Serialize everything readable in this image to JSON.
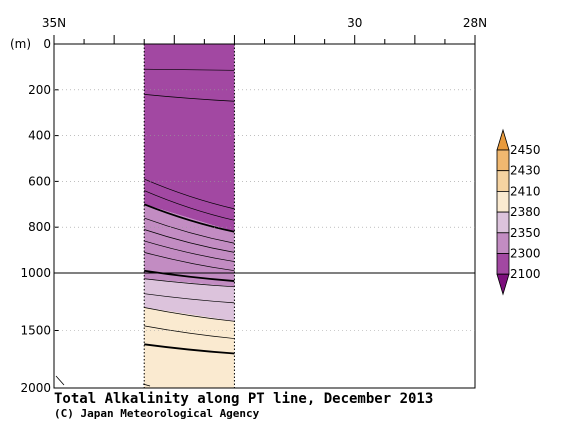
{
  "chart_data": {
    "type": "heatmap",
    "title": "Total Alkalinity along PT line, December 2013",
    "credit": "(C) Japan Meteorological Agency",
    "ylabel": "(m)",
    "x_range": [
      35,
      28
    ],
    "x_ticks": [
      {
        "value": 35,
        "label": "35N"
      },
      {
        "value": 30,
        "label": "30"
      },
      {
        "value": 28,
        "label": "28N"
      }
    ],
    "y_ticks": [
      {
        "value": 0,
        "label": "0"
      },
      {
        "value": 200,
        "label": "200"
      },
      {
        "value": 400,
        "label": "400"
      },
      {
        "value": 600,
        "label": "600"
      },
      {
        "value": 800,
        "label": "800"
      },
      {
        "value": 1000,
        "label": "1000"
      },
      {
        "value": 1500,
        "label": "1500"
      },
      {
        "value": 2000,
        "label": "2000"
      }
    ],
    "y_axis": "two-segment: 0-1000 m and 1000-2000 m, upper segment stretched",
    "data_column_lat": [
      33.5,
      32.0
    ],
    "color_levels": [
      2100,
      2300,
      2350,
      2380,
      2410,
      2430,
      2450
    ],
    "colorbar_labels": [
      "2450",
      "2430",
      "2410",
      "2380",
      "2350",
      "2300",
      "2100"
    ],
    "colors": {
      "below_2100": "#7c0f7c",
      "2100_2300": "#a248a2",
      "2300_2350": "#c28cc2",
      "2350_2380": "#dcc3dc",
      "2380_2410": "#faead0",
      "2410_2430": "#f5d3a1",
      "2430_2450": "#f0b870",
      "above_2450": "#e89a3c"
    },
    "bands": [
      {
        "range": "2100-2300",
        "color_key": "2100_2300",
        "top_depth": [
          0,
          0
        ],
        "bottom_depth": [
          700,
          820
        ]
      },
      {
        "range": "2300-2350",
        "color_key": "2300_2350",
        "top_depth": [
          700,
          820
        ],
        "bottom_depth": [
          1050,
          1120
        ]
      },
      {
        "range": "2350-2380",
        "color_key": "2350_2380",
        "top_depth": [
          1050,
          1120
        ],
        "bottom_depth": [
          1300,
          1420
        ]
      },
      {
        "range": "2380-2410",
        "color_key": "2380_2410",
        "top_depth": [
          1300,
          1420
        ],
        "bottom_depth": [
          2000,
          2000
        ]
      }
    ],
    "contours": [
      {
        "depth": [
          110,
          115
        ],
        "bold": false
      },
      {
        "depth": [
          220,
          250
        ],
        "bold": false
      },
      {
        "depth": [
          590,
          720
        ],
        "bold": false
      },
      {
        "depth": [
          640,
          770
        ],
        "bold": false
      },
      {
        "depth": [
          700,
          820
        ],
        "bold": true
      },
      {
        "depth": [
          760,
          870
        ],
        "bold": false
      },
      {
        "depth": [
          810,
          910
        ],
        "bold": false
      },
      {
        "depth": [
          860,
          950
        ],
        "bold": false
      },
      {
        "depth": [
          910,
          990
        ],
        "bold": false
      },
      {
        "depth": [
          990,
          1070
        ],
        "bold": true
      },
      {
        "depth": [
          1050,
          1120
        ],
        "bold": false
      },
      {
        "depth": [
          1180,
          1260
        ],
        "bold": false
      },
      {
        "depth": [
          1300,
          1420
        ],
        "bold": false
      },
      {
        "depth": [
          1460,
          1570
        ],
        "bold": false
      },
      {
        "depth": [
          1620,
          1700
        ],
        "bold": true
      }
    ]
  }
}
